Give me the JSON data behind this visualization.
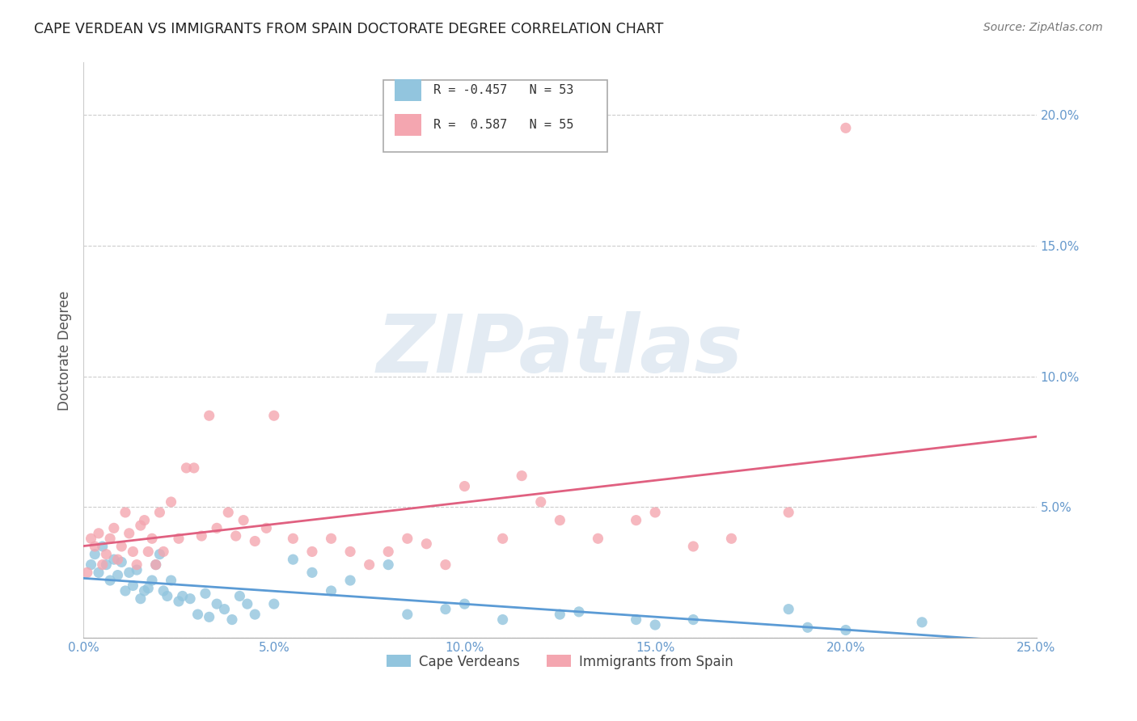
{
  "title": "CAPE VERDEAN VS IMMIGRANTS FROM SPAIN DOCTORATE DEGREE CORRELATION CHART",
  "source": "Source: ZipAtlas.com",
  "ylabel": "Doctorate Degree",
  "xlim": [
    0,
    25
  ],
  "ylim": [
    0,
    22
  ],
  "xticks": [
    0,
    5,
    10,
    15,
    20,
    25
  ],
  "yticks": [
    0,
    5,
    10,
    15,
    20
  ],
  "ytick_labels": [
    "",
    "5.0%",
    "10.0%",
    "15.0%",
    "20.0%"
  ],
  "xtick_labels": [
    "0.0%",
    "5.0%",
    "10.0%",
    "15.0%",
    "20.0%",
    "25.0%"
  ],
  "blue_R": -0.457,
  "blue_N": 53,
  "pink_R": 0.587,
  "pink_N": 55,
  "blue_color": "#92c5de",
  "pink_color": "#f4a6b0",
  "blue_line_color": "#5b9bd5",
  "pink_line_color": "#e06080",
  "legend_label_blue": "Cape Verdeans",
  "legend_label_pink": "Immigrants from Spain",
  "watermark": "ZIPatlas",
  "background_color": "#ffffff",
  "grid_color": "#cccccc",
  "blue_x": [
    0.2,
    0.3,
    0.4,
    0.5,
    0.6,
    0.7,
    0.8,
    0.9,
    1.0,
    1.1,
    1.2,
    1.3,
    1.4,
    1.5,
    1.6,
    1.7,
    1.8,
    1.9,
    2.0,
    2.1,
    2.2,
    2.3,
    2.5,
    2.6,
    2.8,
    3.0,
    3.2,
    3.3,
    3.5,
    3.7,
    3.9,
    4.1,
    4.3,
    4.5,
    5.0,
    5.5,
    6.0,
    6.5,
    7.0,
    8.0,
    8.5,
    9.5,
    10.0,
    11.0,
    12.5,
    13.0,
    14.5,
    15.0,
    16.0,
    18.5,
    19.0,
    20.0,
    22.0
  ],
  "blue_y": [
    2.8,
    3.2,
    2.5,
    3.5,
    2.8,
    2.2,
    3.0,
    2.4,
    2.9,
    1.8,
    2.5,
    2.0,
    2.6,
    1.5,
    1.8,
    1.9,
    2.2,
    2.8,
    3.2,
    1.8,
    1.6,
    2.2,
    1.4,
    1.6,
    1.5,
    0.9,
    1.7,
    0.8,
    1.3,
    1.1,
    0.7,
    1.6,
    1.3,
    0.9,
    1.3,
    3.0,
    2.5,
    1.8,
    2.2,
    2.8,
    0.9,
    1.1,
    1.3,
    0.7,
    0.9,
    1.0,
    0.7,
    0.5,
    0.7,
    1.1,
    0.4,
    0.3,
    0.6
  ],
  "pink_x": [
    0.1,
    0.2,
    0.3,
    0.4,
    0.5,
    0.6,
    0.7,
    0.8,
    0.9,
    1.0,
    1.1,
    1.2,
    1.3,
    1.4,
    1.5,
    1.6,
    1.7,
    1.8,
    1.9,
    2.0,
    2.1,
    2.3,
    2.5,
    2.7,
    2.9,
    3.1,
    3.3,
    3.5,
    3.8,
    4.0,
    4.2,
    4.5,
    4.8,
    5.0,
    5.5,
    6.0,
    6.5,
    7.0,
    7.5,
    8.0,
    8.5,
    9.0,
    9.5,
    10.0,
    11.0,
    11.5,
    12.0,
    12.5,
    13.5,
    14.5,
    15.0,
    16.0,
    17.0,
    18.5,
    20.0
  ],
  "pink_y": [
    2.5,
    3.8,
    3.5,
    4.0,
    2.8,
    3.2,
    3.8,
    4.2,
    3.0,
    3.5,
    4.8,
    4.0,
    3.3,
    2.8,
    4.3,
    4.5,
    3.3,
    3.8,
    2.8,
    4.8,
    3.3,
    5.2,
    3.8,
    6.5,
    6.5,
    3.9,
    8.5,
    4.2,
    4.8,
    3.9,
    4.5,
    3.7,
    4.2,
    8.5,
    3.8,
    3.3,
    3.8,
    3.3,
    2.8,
    3.3,
    3.8,
    3.6,
    2.8,
    5.8,
    3.8,
    6.2,
    5.2,
    4.5,
    3.8,
    4.5,
    4.8,
    3.5,
    3.8,
    4.8,
    19.5
  ]
}
